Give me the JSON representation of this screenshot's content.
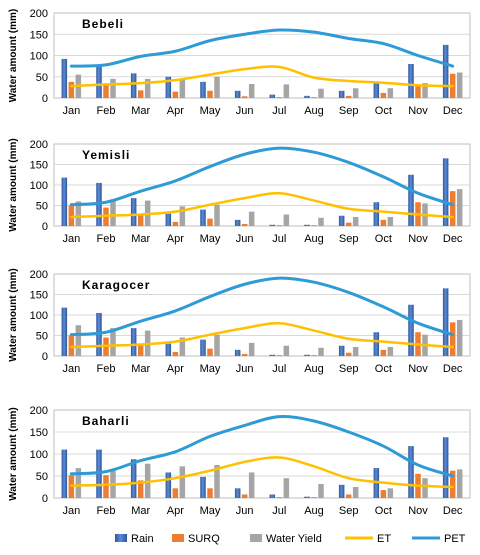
{
  "chart_data": [
    {
      "type": "bar",
      "title": "Bebeli",
      "ylabel": "Water amount (mm)",
      "xlabel": "",
      "ylim": [
        0,
        200
      ],
      "yticks": [
        0,
        50,
        100,
        150,
        200
      ],
      "categories": [
        "Jan",
        "Feb",
        "Mar",
        "Apr",
        "May",
        "Jun",
        "Jul",
        "Aug",
        "Sep",
        "Oct",
        "Nov",
        "Dec"
      ],
      "series": [
        {
          "name": "Rain",
          "kind": "bar",
          "values": [
            92,
            78,
            58,
            50,
            38,
            17,
            8,
            5,
            17,
            35,
            80,
            125
          ]
        },
        {
          "name": "SURQ",
          "kind": "bar",
          "values": [
            38,
            30,
            18,
            15,
            17,
            4,
            2,
            2,
            5,
            12,
            32,
            57
          ]
        },
        {
          "name": "Water Yield",
          "kind": "bar",
          "values": [
            55,
            45,
            45,
            43,
            50,
            33,
            32,
            22,
            23,
            23,
            35,
            60
          ]
        },
        {
          "name": "ET",
          "kind": "line",
          "values": [
            28,
            32,
            35,
            42,
            55,
            68,
            73,
            48,
            40,
            36,
            30,
            28
          ]
        },
        {
          "name": "PET",
          "kind": "line",
          "values": [
            75,
            78,
            98,
            110,
            135,
            150,
            160,
            155,
            140,
            128,
            100,
            75
          ]
        }
      ]
    },
    {
      "type": "bar",
      "title": "Yemisli",
      "ylabel": "Water amount (mm)",
      "xlabel": "",
      "ylim": [
        0,
        200
      ],
      "yticks": [
        0,
        50,
        100,
        150,
        200
      ],
      "categories": [
        "Jan",
        "Feb",
        "Mar",
        "Apr",
        "May",
        "Jun",
        "Jul",
        "Aug",
        "Sep",
        "Oct",
        "Nov",
        "Dec"
      ],
      "series": [
        {
          "name": "Rain",
          "kind": "bar",
          "values": [
            118,
            105,
            68,
            30,
            40,
            15,
            3,
            3,
            25,
            58,
            125,
            165
          ]
        },
        {
          "name": "SURQ",
          "kind": "bar",
          "values": [
            50,
            45,
            27,
            10,
            18,
            5,
            2,
            2,
            8,
            15,
            58,
            85
          ]
        },
        {
          "name": "Water Yield",
          "kind": "bar",
          "values": [
            60,
            65,
            62,
            48,
            52,
            35,
            28,
            20,
            22,
            22,
            55,
            90
          ]
        },
        {
          "name": "ET",
          "kind": "line",
          "values": [
            22,
            25,
            28,
            35,
            52,
            68,
            80,
            62,
            42,
            35,
            28,
            22
          ]
        },
        {
          "name": "PET",
          "kind": "line",
          "values": [
            52,
            58,
            85,
            110,
            145,
            175,
            190,
            180,
            155,
            120,
            80,
            52
          ]
        }
      ]
    },
    {
      "type": "bar",
      "title": "Karagocer",
      "ylabel": "Water amount (mm)",
      "xlabel": "",
      "ylim": [
        0,
        200
      ],
      "yticks": [
        0,
        50,
        100,
        150,
        200
      ],
      "categories": [
        "Jan",
        "Feb",
        "Mar",
        "Apr",
        "May",
        "Jun",
        "Jul",
        "Aug",
        "Sep",
        "Oct",
        "Nov",
        "Dec"
      ],
      "series": [
        {
          "name": "Rain",
          "kind": "bar",
          "values": [
            118,
            105,
            68,
            30,
            40,
            15,
            3,
            3,
            25,
            58,
            125,
            165
          ]
        },
        {
          "name": "SURQ",
          "kind": "bar",
          "values": [
            50,
            45,
            27,
            10,
            18,
            5,
            2,
            2,
            8,
            15,
            58,
            82
          ]
        },
        {
          "name": "Water Yield",
          "kind": "bar",
          "values": [
            75,
            68,
            62,
            45,
            52,
            32,
            25,
            20,
            22,
            22,
            52,
            88
          ]
        },
        {
          "name": "ET",
          "kind": "line",
          "values": [
            22,
            25,
            28,
            35,
            52,
            68,
            80,
            62,
            42,
            35,
            28,
            22
          ]
        },
        {
          "name": "PET",
          "kind": "line",
          "values": [
            52,
            58,
            85,
            110,
            145,
            175,
            190,
            180,
            155,
            120,
            80,
            52
          ]
        }
      ]
    },
    {
      "type": "bar",
      "title": "Baharli",
      "ylabel": "Water amount (mm)",
      "xlabel": "",
      "ylim": [
        0,
        200
      ],
      "yticks": [
        0,
        50,
        100,
        150,
        200
      ],
      "categories": [
        "Jan",
        "Feb",
        "Mar",
        "Apr",
        "May",
        "Jun",
        "Jul",
        "Aug",
        "Sep",
        "Oct",
        "Nov",
        "Dec"
      ],
      "series": [
        {
          "name": "Rain",
          "kind": "bar",
          "values": [
            110,
            110,
            88,
            58,
            48,
            22,
            8,
            3,
            30,
            68,
            118,
            138
          ]
        },
        {
          "name": "SURQ",
          "kind": "bar",
          "values": [
            52,
            52,
            40,
            22,
            22,
            8,
            2,
            2,
            8,
            18,
            55,
            62
          ]
        },
        {
          "name": "Water Yield",
          "kind": "bar",
          "values": [
            68,
            65,
            78,
            72,
            75,
            58,
            45,
            32,
            25,
            22,
            45,
            65
          ]
        },
        {
          "name": "ET",
          "kind": "line",
          "values": [
            28,
            30,
            35,
            45,
            62,
            82,
            92,
            72,
            45,
            35,
            28,
            25
          ]
        },
        {
          "name": "PET",
          "kind": "line",
          "values": [
            55,
            60,
            85,
            105,
            140,
            165,
            185,
            175,
            150,
            118,
            75,
            50
          ]
        }
      ]
    }
  ],
  "legend": {
    "placement": "bottom",
    "items": [
      {
        "name": "Rain",
        "color": "#4472c4"
      },
      {
        "name": "SURQ",
        "color": "#ed7d31"
      },
      {
        "name": "Water Yield",
        "color": "#a5a5a5"
      },
      {
        "name": "ET",
        "color": "#ffc000"
      },
      {
        "name": "PET",
        "color": "#2e9bd6"
      }
    ]
  },
  "colors": {
    "Rain": "#4472c4",
    "SURQ": "#ed7d31",
    "Water Yield": "#a5a5a5",
    "ET": "#ffc000",
    "PET": "#2e9bd6"
  }
}
